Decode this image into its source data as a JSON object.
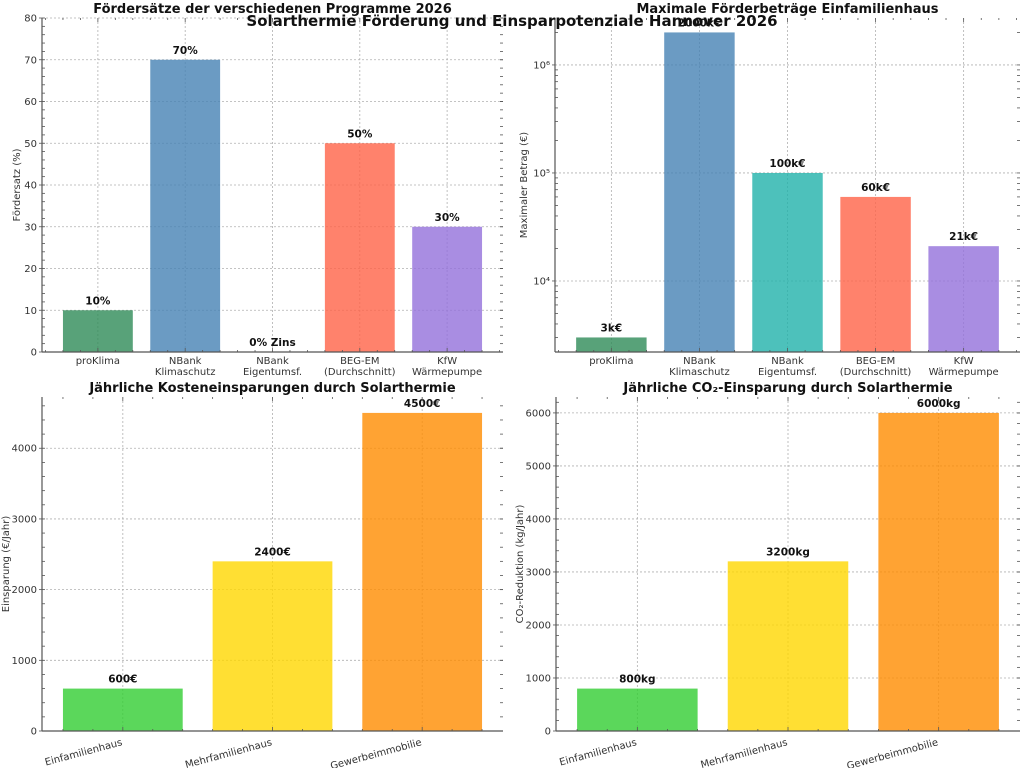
{
  "figure": {
    "suptitle": "Solarthermie Förderung und Einsparpotenziale Hannover 2026"
  },
  "chart_data": [
    {
      "id": "foerdersaetze",
      "type": "bar",
      "title": "Fördersätze der verschiedenen Programme 2026",
      "xlabel": "",
      "ylabel": "Fördersatz (%)",
      "categories": [
        "proKlima",
        "NBank\nKlimaschutz",
        "NBank\nEigentumsf.",
        "BEG-EM\n(Durchschnitt)",
        "KfW\nWärmepumpe"
      ],
      "values": [
        10,
        70,
        0,
        50,
        30
      ],
      "value_labels": [
        "10%",
        "70%",
        "0% Zins",
        "50%",
        "30%"
      ],
      "colors": [
        "#2e8b57",
        "#4682b4",
        "#20b2aa",
        "#ff6347",
        "#9370db"
      ],
      "yscale": "linear",
      "ylim": [
        0,
        80
      ],
      "yticks": [
        0,
        10,
        20,
        30,
        40,
        50,
        60,
        70,
        80
      ],
      "ytick_labels": [
        "0",
        "10",
        "20",
        "30",
        "40",
        "50",
        "60",
        "70",
        "80"
      ],
      "grid": true
    },
    {
      "id": "foerderbetraege",
      "type": "bar",
      "title": "Maximale Förderbeträge Einfamilienhaus",
      "xlabel": "",
      "ylabel": "Maximaler Betrag (€)",
      "categories": [
        "proKlima",
        "NBank\nKlimaschutz",
        "NBank\nEigentumsf.",
        "BEG-EM\n(Durchschnitt)",
        "KfW\nWärmepumpe"
      ],
      "values": [
        3000,
        2000000,
        100000,
        60000,
        21000
      ],
      "value_labels": [
        "3k€",
        "2000k€",
        "100k€",
        "60k€",
        "21k€"
      ],
      "colors": [
        "#2e8b57",
        "#4682b4",
        "#20b2aa",
        "#ff6347",
        "#9370db"
      ],
      "yscale": "log",
      "ylim": [
        2200,
        2720000
      ],
      "yticks": [
        10000,
        100000,
        1000000
      ],
      "ytick_labels": [
        "10⁴",
        "10⁵",
        "10⁶"
      ],
      "grid": true
    },
    {
      "id": "kosteneinsparungen",
      "type": "bar",
      "title": "Jährliche Kosteneinsparungen durch Solarthermie",
      "xlabel": "",
      "ylabel": "Einsparung (€/Jahr)",
      "categories": [
        "Einfamilienhaus",
        "Mehrfamilienhaus",
        "Gewerbeimmobilie"
      ],
      "values": [
        600,
        2400,
        4500
      ],
      "value_labels": [
        "600€",
        "2400€",
        "4500€"
      ],
      "colors": [
        "#32cd32",
        "#ffd700",
        "#ff8c00"
      ],
      "yscale": "linear",
      "ylim": [
        0,
        4725
      ],
      "yticks": [
        0,
        1000,
        2000,
        3000,
        4000
      ],
      "ytick_labels": [
        "0",
        "1000",
        "2000",
        "3000",
        "4000"
      ],
      "grid": true
    },
    {
      "id": "co2einsparung",
      "type": "bar",
      "title": "Jährliche CO₂-Einsparung durch Solarthermie",
      "xlabel": "",
      "ylabel": "CO₂-Reduktion (kg/Jahr)",
      "categories": [
        "Einfamilienhaus",
        "Mehrfamilienhaus",
        "Gewerbeimmobilie"
      ],
      "values": [
        800,
        3200,
        6000
      ],
      "value_labels": [
        "800kg",
        "3200kg",
        "6000kg"
      ],
      "colors": [
        "#32cd32",
        "#ffd700",
        "#ff8c00"
      ],
      "yscale": "linear",
      "ylim": [
        0,
        6300
      ],
      "yticks": [
        0,
        1000,
        2000,
        3000,
        4000,
        5000,
        6000
      ],
      "ytick_labels": [
        "0",
        "1000",
        "2000",
        "3000",
        "4000",
        "5000",
        "6000"
      ],
      "grid": true
    }
  ]
}
